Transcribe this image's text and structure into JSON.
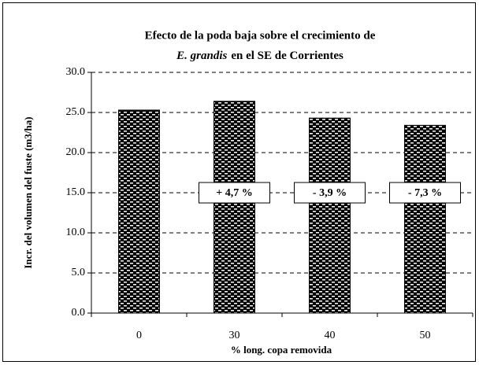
{
  "chart_data": {
    "type": "bar",
    "title": {
      "line1": "Efecto de la poda baja sobre el crecimiento de",
      "italic": "E. grandis",
      "rest": "en el SE de Corrientes"
    },
    "xlabel": "% long. copa removida",
    "ylabel": "Incr. del volumen del fuste (m3/ha)",
    "categories": [
      "0",
      "30",
      "40",
      "50"
    ],
    "values": [
      25.3,
      26.4,
      24.3,
      23.4
    ],
    "color": "#000000",
    "ylim": [
      0,
      30
    ],
    "yticks": [
      {
        "value": 0,
        "label": "0.0"
      },
      {
        "value": 5,
        "label": "5.0"
      },
      {
        "value": 10,
        "label": "10.0"
      },
      {
        "value": 15,
        "label": "15.0"
      },
      {
        "value": 20,
        "label": "20.0"
      },
      {
        "value": 25,
        "label": "25.0"
      },
      {
        "value": 30,
        "label": "30.0"
      }
    ],
    "grid": true,
    "annotations": [
      {
        "category": 1,
        "y": 15,
        "text": "+ 4,7 %"
      },
      {
        "category": 2,
        "y": 15,
        "text": "- 3,9 %"
      },
      {
        "category": 3,
        "y": 15,
        "text": "- 7,3 %"
      }
    ]
  }
}
